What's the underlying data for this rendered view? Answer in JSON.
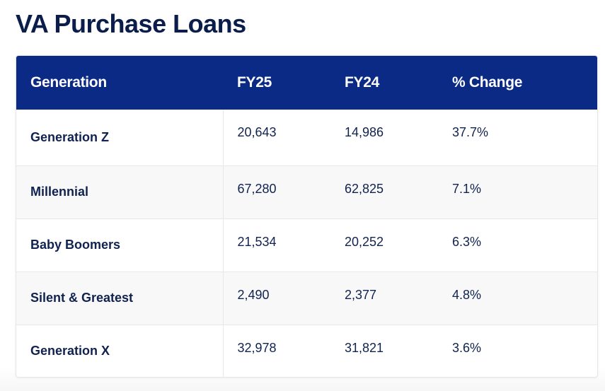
{
  "title": "VA Purchase Loans",
  "table": {
    "headers": [
      "Generation",
      "FY25",
      "FY24",
      "% Change"
    ],
    "rows": [
      {
        "generation": "Generation Z",
        "fy25": "20,643",
        "fy24": "14,986",
        "change": "37.7%"
      },
      {
        "generation": "Millennial",
        "fy25": "67,280",
        "fy24": "62,825",
        "change": "7.1%"
      },
      {
        "generation": "Baby Boomers",
        "fy25": "21,534",
        "fy24": "20,252",
        "change": "6.3%"
      },
      {
        "generation": "Silent & Greatest",
        "fy25": "2,490",
        "fy24": "2,377",
        "change": "4.8%"
      },
      {
        "generation": "Generation X",
        "fy25": "32,978",
        "fy24": "31,821",
        "change": "3.6%"
      }
    ]
  },
  "colors": {
    "header_bg": "#0a2a85",
    "title_text": "#0b1d4a",
    "body_text": "#10224f"
  }
}
